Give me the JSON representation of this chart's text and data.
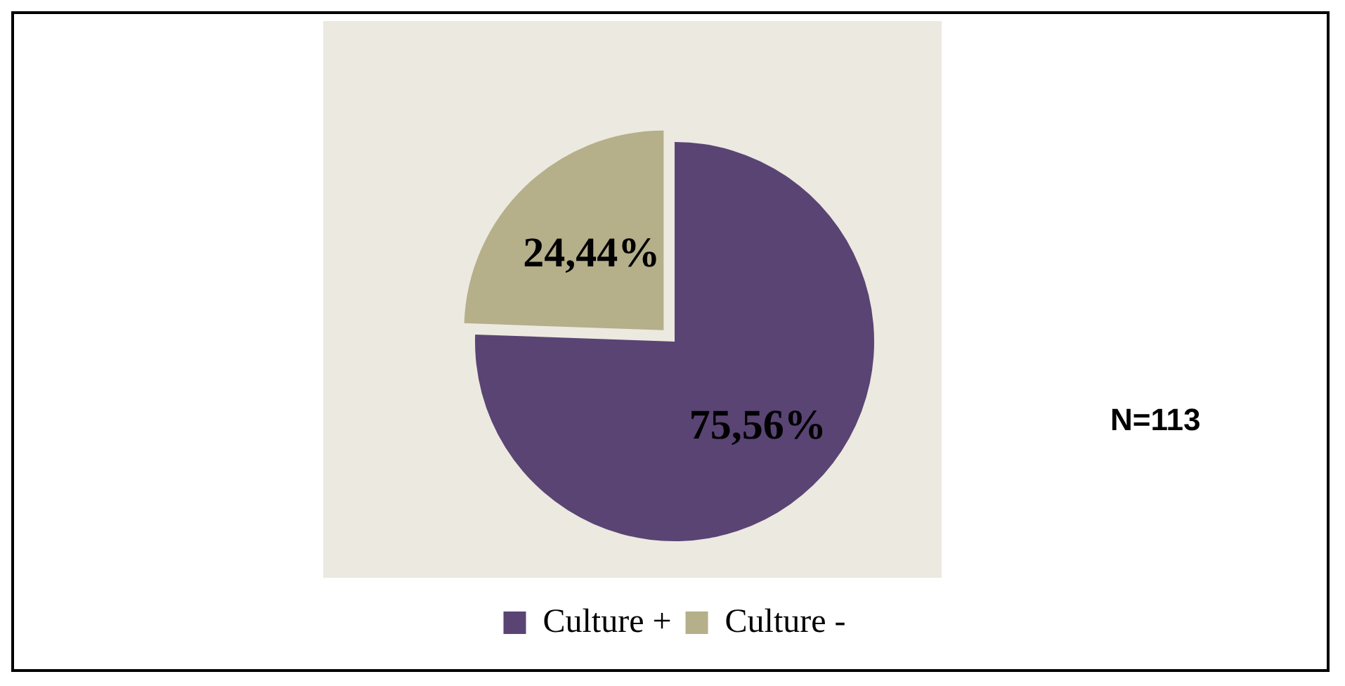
{
  "chart_data": {
    "type": "pie",
    "categories": [
      "Culture +",
      "Culture -"
    ],
    "values": [
      75.56,
      24.44
    ],
    "colors": [
      "#5a4474",
      "#b5af8a"
    ],
    "value_labels": [
      "75,56%",
      "24,44%"
    ],
    "legend": "bottom",
    "annotations": [
      "N=113"
    ]
  }
}
